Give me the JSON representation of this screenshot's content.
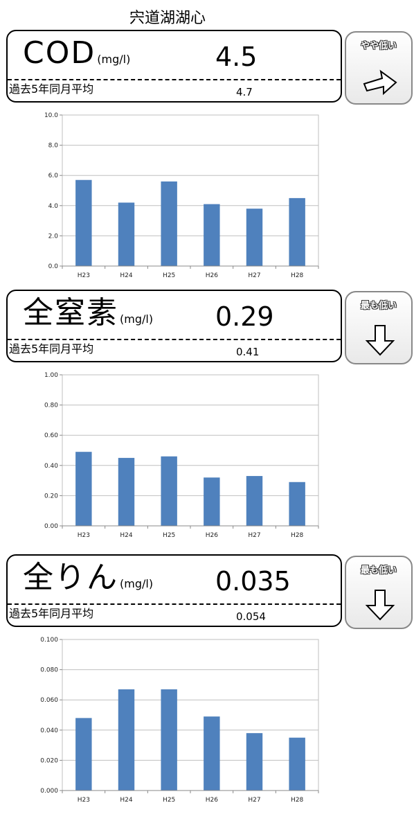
{
  "page_title": "宍道湖湖心",
  "avg_label": "過去5年同月平均",
  "bar_color": "#4f81bd",
  "panels": [
    {
      "name": "COD",
      "unit": "(mg/l)",
      "value": "4.5",
      "avg_value": "4.7",
      "badge": {
        "text": "やや低い",
        "icon": "right-arrow-icon"
      }
    },
    {
      "name": "全窒素",
      "unit": "(mg/l)",
      "value": "0.29",
      "avg_value": "0.41",
      "badge": {
        "text": "最も低い",
        "icon": "down-arrow-icon"
      }
    },
    {
      "name": "全りん",
      "unit": "(mg/l)",
      "value": "0.035",
      "avg_value": "0.054",
      "badge": {
        "text": "最も低い",
        "icon": "down-arrow-icon"
      }
    }
  ],
  "chart_data": [
    {
      "type": "bar",
      "categories": [
        "H23",
        "H24",
        "H25",
        "H26",
        "H27",
        "H28"
      ],
      "values": [
        5.7,
        4.2,
        5.6,
        4.1,
        3.8,
        4.5
      ],
      "ylim": [
        0,
        10
      ],
      "yticks": [
        "0.0",
        "2.0",
        "4.0",
        "6.0",
        "8.0",
        "10.0"
      ],
      "grid": true
    },
    {
      "type": "bar",
      "categories": [
        "H23",
        "H24",
        "H25",
        "H26",
        "H27",
        "H28"
      ],
      "values": [
        0.49,
        0.45,
        0.46,
        0.32,
        0.33,
        0.29
      ],
      "ylim": [
        0,
        1
      ],
      "yticks": [
        "0.00",
        "0.20",
        "0.40",
        "0.60",
        "0.80",
        "1.00"
      ],
      "grid": true
    },
    {
      "type": "bar",
      "categories": [
        "H23",
        "H24",
        "H25",
        "H26",
        "H27",
        "H28"
      ],
      "values": [
        0.048,
        0.067,
        0.067,
        0.049,
        0.038,
        0.035
      ],
      "ylim": [
        0,
        0.1
      ],
      "yticks": [
        "0.000",
        "0.020",
        "0.040",
        "0.060",
        "0.080",
        "0.100"
      ],
      "grid": true
    }
  ]
}
